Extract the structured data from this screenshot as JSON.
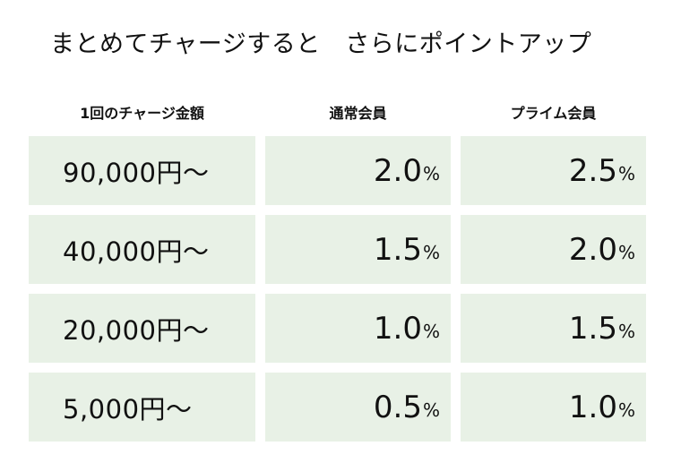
{
  "title": "まとめてチャージすると　さらにポイントアップ",
  "headers": {
    "amount": "1回のチャージ金額",
    "normal": "通常会員",
    "prime": "プライム会員"
  },
  "percent_sign": "%",
  "rows": [
    {
      "amount": "90,000円〜",
      "normal": "2.0",
      "prime": "2.5"
    },
    {
      "amount": "40,000円〜",
      "normal": "1.5",
      "prime": "2.0"
    },
    {
      "amount": "20,000円〜",
      "normal": "1.0",
      "prime": "1.5"
    },
    {
      "amount": "5,000円〜",
      "normal": "0.5",
      "prime": "1.0"
    }
  ],
  "colors": {
    "cell_background": "#e8f1e6",
    "text": "#111111"
  }
}
